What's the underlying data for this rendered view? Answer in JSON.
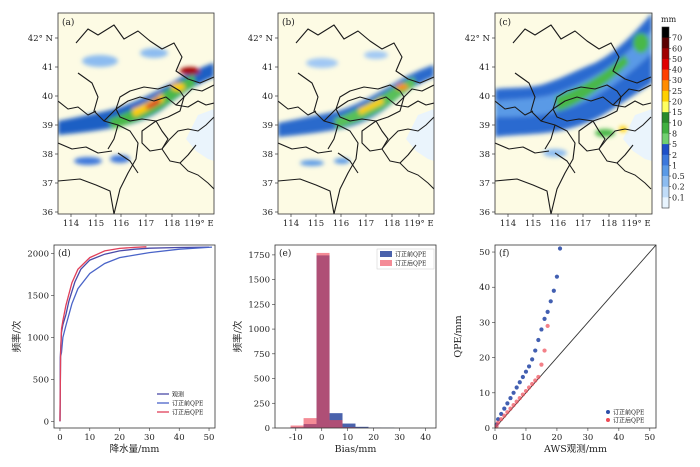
{
  "figure": {
    "panel_labels": [
      "(a)",
      "(b)",
      "(c)",
      "(d)",
      "(e)",
      "(f)"
    ],
    "map_lat_ticks": [
      "42° N",
      "41",
      "40",
      "39",
      "38",
      "37",
      "36"
    ],
    "map_lon_ticks": [
      "114",
      "115",
      "116",
      "117",
      "118",
      "119° E"
    ],
    "colorbar": {
      "unit": "mm",
      "labels": [
        "70",
        "60",
        "50",
        "40",
        "30",
        "25",
        "20",
        "15",
        "10",
        "8",
        "5",
        "2",
        "1",
        "0.5",
        "0.2",
        "0.1"
      ],
      "colors": [
        "#000000",
        "#5a0000",
        "#a00000",
        "#e00000",
        "#ff4000",
        "#ff8c00",
        "#ffd000",
        "#ffff60",
        "#2a8a2a",
        "#40b040",
        "#70d070",
        "#1e50c8",
        "#3c78dc",
        "#5a9ae6",
        "#8cbcf0",
        "#c0dcf8",
        "#e8f4fe"
      ]
    }
  },
  "chart_data": [
    {
      "type": "line",
      "title": "(d)",
      "xlabel": "降水量/mm",
      "ylabel": "频率/次",
      "xlim": [
        -2,
        52
      ],
      "ylim": [
        -80,
        2100
      ],
      "xticks": [
        0,
        10,
        20,
        30,
        40,
        50
      ],
      "yticks": [
        0,
        500,
        1000,
        1500,
        2000
      ],
      "legend_position": "lower-right",
      "series": [
        {
          "name": "观测",
          "color": "#4a4aa8",
          "x": [
            0,
            0.1,
            0.5,
            1,
            2,
            3,
            5,
            7,
            10,
            15,
            20,
            25,
            30,
            40,
            50
          ],
          "y": [
            0,
            760,
            1060,
            1150,
            1270,
            1430,
            1660,
            1810,
            1920,
            1990,
            2030,
            2050,
            2062,
            2070,
            2075
          ]
        },
        {
          "name": "订正前QPE",
          "color": "#4a64c8",
          "x": [
            0,
            0.2,
            0.5,
            1,
            2,
            4,
            6,
            10,
            15,
            20,
            30,
            40,
            51
          ],
          "y": [
            0,
            770,
            820,
            1000,
            1140,
            1400,
            1580,
            1760,
            1880,
            1950,
            2010,
            2050,
            2075
          ]
        },
        {
          "name": "订正后QPE",
          "color": "#e0405a",
          "x": [
            0,
            0.2,
            0.5,
            1,
            2,
            4,
            6,
            10,
            15,
            20,
            25,
            29
          ],
          "y": [
            0,
            800,
            1100,
            1200,
            1380,
            1650,
            1810,
            1950,
            2030,
            2060,
            2072,
            2078
          ]
        }
      ]
    },
    {
      "type": "bar",
      "title": "(e)",
      "xlabel": "Bias/mm",
      "ylabel": "频率/次",
      "xlim": [
        -18,
        44
      ],
      "ylim": [
        0,
        1850
      ],
      "xticks": [
        -10,
        0,
        10,
        20,
        30,
        40
      ],
      "yticks": [
        0,
        250,
        500,
        750,
        1000,
        1250,
        1500,
        1750
      ],
      "legend_position": "top-right",
      "bin_edges": [
        -12,
        -7,
        -2,
        3,
        8,
        13,
        18,
        23,
        28
      ],
      "series": [
        {
          "name": "订正前QPE",
          "color": "#3b55a5",
          "values": [
            8,
            40,
            1745,
            150,
            45,
            12,
            4,
            3
          ]
        },
        {
          "name": "订正后QPE",
          "color": "#ee4455",
          "values": [
            25,
            100,
            1770,
            80,
            8,
            2,
            1,
            0
          ]
        }
      ]
    },
    {
      "type": "scatter",
      "title": "(f)",
      "xlabel": "AWS观测/mm",
      "ylabel": "QPE/mm",
      "xlim": [
        0,
        52
      ],
      "ylim": [
        0,
        52
      ],
      "xticks": [
        0,
        10,
        20,
        30,
        40,
        50
      ],
      "yticks": [
        0,
        10,
        20,
        30,
        40,
        50
      ],
      "reference_line": "y = x",
      "legend_position": "lower-right",
      "series": [
        {
          "name": "订正前QPE",
          "color": "#2d4ea8",
          "x": [
            0.5,
            1,
            2,
            3,
            4,
            5,
            6,
            7,
            8,
            9,
            10,
            11,
            12,
            13,
            14,
            15,
            16,
            17,
            18,
            19,
            20,
            21
          ],
          "y": [
            1,
            2.5,
            4,
            5.5,
            7,
            8.5,
            10,
            11.5,
            13,
            14.5,
            16,
            17.5,
            19.5,
            22,
            25,
            28,
            31,
            33,
            36,
            39,
            43,
            51
          ]
        },
        {
          "name": "订正后QPE",
          "color": "#ee4a55",
          "x": [
            0.5,
            1,
            2,
            3,
            4,
            5,
            6,
            7,
            8,
            9,
            10,
            11,
            12,
            13,
            14,
            15,
            16,
            17
          ],
          "y": [
            0.5,
            1.5,
            2.5,
            3.5,
            4.5,
            5.5,
            6.5,
            7.5,
            8.5,
            9.5,
            10.5,
            11.5,
            12.5,
            13.5,
            14.5,
            18,
            22,
            29
          ]
        }
      ]
    }
  ]
}
